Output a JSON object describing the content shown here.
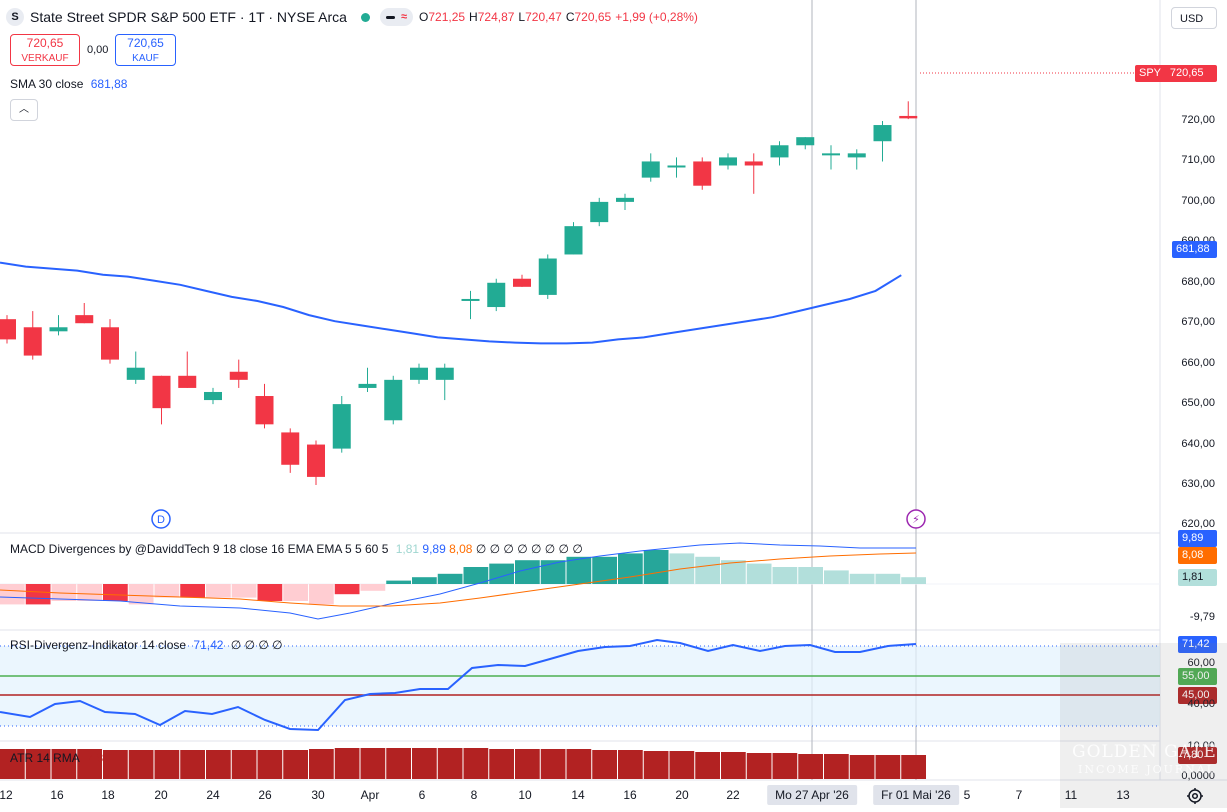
{
  "header": {
    "logo_letter": "S",
    "title": "State Street SPDR S&P 500 ETF · 1T · NYSE Arca",
    "pill_icon": "≈",
    "ohlc": {
      "o_label": "O",
      "o": "721,25",
      "h_label": "H",
      "h": "724,87",
      "l_label": "L",
      "l": "720,47",
      "c_label": "C",
      "c": "720,65",
      "change": "+1,99 (+0,28%)"
    },
    "currency": "USD"
  },
  "trade": {
    "sell_price": "720,65",
    "sell_label": "VERKAUF",
    "spread": "0,00",
    "buy_price": "720,65",
    "buy_label": "KAUF"
  },
  "sma": {
    "label": "SMA 30 close",
    "value": "681,88"
  },
  "macd": {
    "label": "MACD Divergences by @DaviddTech 9 18 close 16 EMA EMA 5 5 60 5",
    "v1": "1,81",
    "v2": "9,89",
    "v3": "8,08",
    "extra": "∅ ∅ ∅ ∅ ∅ ∅ ∅ ∅"
  },
  "rsi": {
    "label": "RSI-Divergenz-Indikator 14 close",
    "value": "71,42",
    "extra": "∅ ∅ ∅ ∅"
  },
  "atr": {
    "label": "ATR 14 RMA",
    "value": "7,80"
  },
  "price_axis": [
    "720,00",
    "710,00",
    "700,00",
    "690,00",
    "680,00",
    "670,00",
    "660,00",
    "650,00",
    "640,00",
    "630,00",
    "620,00"
  ],
  "price_tags": {
    "symbol": "SPY",
    "last": "720,65",
    "sma": "681,88"
  },
  "macd_axis": {
    "tag_blue": "9,89",
    "tag_orange": "8,08",
    "tag_hist": "1,81",
    "low": "-9,79",
    "zero": "0,00"
  },
  "rsi_axis": {
    "tag": "71,42",
    "sixty": "60,00",
    "fifty_five": "55,00",
    "forty_five": "45,00",
    "forty": "40,00"
  },
  "atr_axis": {
    "tag": "7,80",
    "ten": "10,00",
    "zero": "0,0000"
  },
  "x_axis": [
    "12",
    "16",
    "18",
    "20",
    "24",
    "26",
    "30",
    "Apr",
    "6",
    "8",
    "10",
    "14",
    "16",
    "20",
    "22",
    "5",
    "7",
    "11",
    "13"
  ],
  "x_axis_highlight": [
    "Mo 27 Apr '26",
    "Fr 01 Mai '26"
  ],
  "markers": {
    "dividend": "D",
    "earnings": "⚡"
  },
  "watermark": {
    "title": "GOLDEN GATE",
    "sub": "INCOME JOURNAL"
  },
  "colors": {
    "up": "#22ab94",
    "down": "#f23645",
    "sma": "#2962ff",
    "macd": "#2962ff",
    "signal": "#ff6d00",
    "rsi": "#2962ff",
    "atr": "#b22222"
  },
  "chart_data": {
    "type": "candlestick",
    "ylim": [
      620,
      725
    ],
    "candles": [
      {
        "o": 671,
        "h": 672,
        "l": 665,
        "c": 666
      },
      {
        "o": 669,
        "h": 673,
        "l": 661,
        "c": 662
      },
      {
        "o": 668,
        "h": 672,
        "l": 667,
        "c": 669
      },
      {
        "o": 672,
        "h": 675,
        "l": 670,
        "c": 670
      },
      {
        "o": 669,
        "h": 671,
        "l": 660,
        "c": 661
      },
      {
        "o": 656,
        "h": 663,
        "l": 655,
        "c": 659
      },
      {
        "o": 657,
        "h": 657,
        "l": 645,
        "c": 649
      },
      {
        "o": 657,
        "h": 663,
        "l": 654,
        "c": 654
      },
      {
        "o": 651,
        "h": 654,
        "l": 650,
        "c": 653
      },
      {
        "o": 658,
        "h": 661,
        "l": 654,
        "c": 656
      },
      {
        "o": 652,
        "h": 655,
        "l": 644,
        "c": 645
      },
      {
        "o": 643,
        "h": 644,
        "l": 633,
        "c": 635
      },
      {
        "o": 640,
        "h": 641,
        "l": 630,
        "c": 632
      },
      {
        "o": 639,
        "h": 652,
        "l": 638,
        "c": 650
      },
      {
        "o": 654,
        "h": 659,
        "l": 653,
        "c": 655
      },
      {
        "o": 646,
        "h": 657,
        "l": 645,
        "c": 656
      },
      {
        "o": 656,
        "h": 660,
        "l": 655,
        "c": 659
      },
      {
        "o": 656,
        "h": 660,
        "l": 651,
        "c": 659
      },
      {
        "o": 676,
        "h": 678,
        "l": 671,
        "c": 676
      },
      {
        "o": 674,
        "h": 681,
        "l": 673,
        "c": 680
      },
      {
        "o": 681,
        "h": 682,
        "l": 679,
        "c": 679
      },
      {
        "o": 677,
        "h": 687,
        "l": 676,
        "c": 686
      },
      {
        "o": 687,
        "h": 695,
        "l": 687,
        "c": 694
      },
      {
        "o": 695,
        "h": 701,
        "l": 694,
        "c": 700
      },
      {
        "o": 700,
        "h": 702,
        "l": 698,
        "c": 701
      },
      {
        "o": 706,
        "h": 712,
        "l": 705,
        "c": 710
      },
      {
        "o": 709,
        "h": 711,
        "l": 706,
        "c": 709
      },
      {
        "o": 710,
        "h": 711,
        "l": 703,
        "c": 704
      },
      {
        "o": 709,
        "h": 712,
        "l": 708,
        "c": 711
      },
      {
        "o": 710,
        "h": 712,
        "l": 702,
        "c": 709
      },
      {
        "o": 711,
        "h": 715,
        "l": 709,
        "c": 714
      },
      {
        "o": 714,
        "h": 716,
        "l": 713,
        "c": 716
      },
      {
        "o": 712,
        "h": 714,
        "l": 708,
        "c": 712
      },
      {
        "o": 711,
        "h": 713,
        "l": 708,
        "c": 712
      },
      {
        "o": 715,
        "h": 720,
        "l": 710,
        "c": 719
      },
      {
        "o": 721.25,
        "h": 724.87,
        "l": 720.47,
        "c": 720.65
      }
    ],
    "sma": [
      685,
      684,
      683.5,
      683,
      682,
      681.5,
      680.5,
      679.5,
      678,
      676.5,
      675.5,
      674,
      672,
      670.5,
      669.5,
      668.5,
      667.5,
      666.5,
      666,
      665.5,
      665.2,
      665,
      665,
      665.2,
      666,
      666.5,
      667.5,
      668.5,
      669.5,
      670.5,
      671.5,
      673,
      674.5,
      676,
      678,
      681.88
    ]
  }
}
